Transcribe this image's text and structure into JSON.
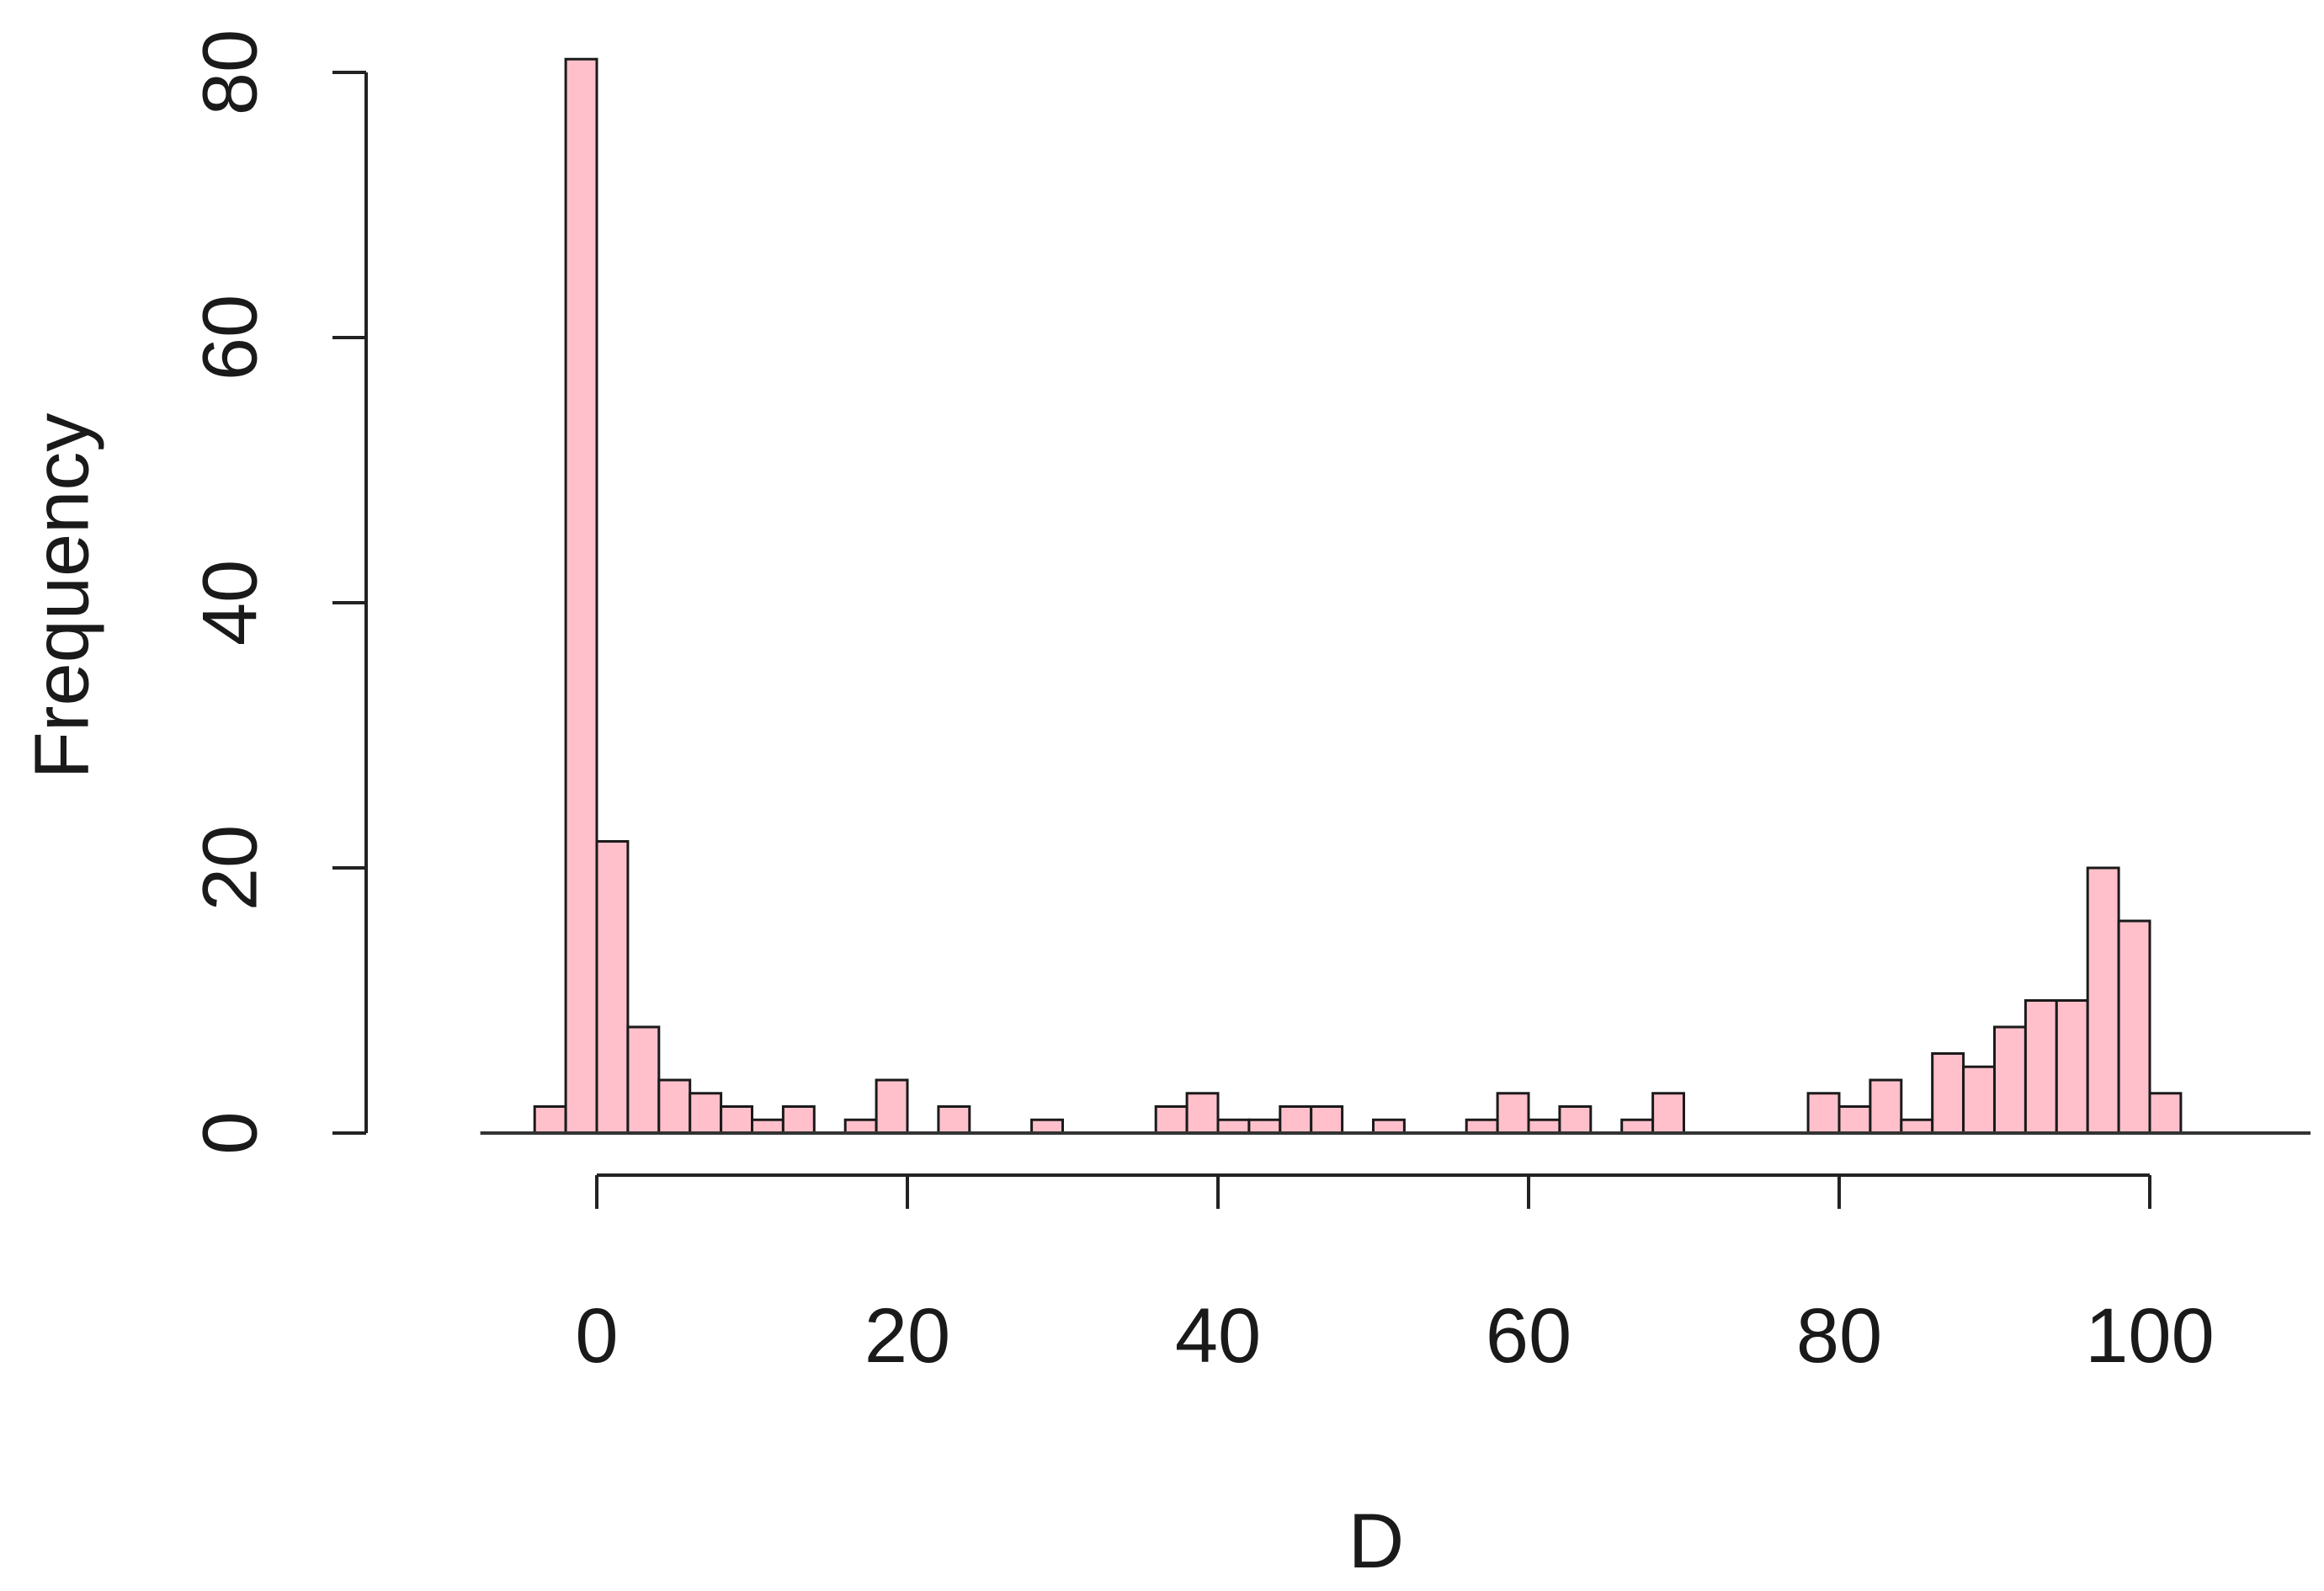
{
  "chart_data": {
    "type": "bar",
    "xlabel": "D",
    "ylabel": "Frequency",
    "bar_color": "#ffc0cb",
    "edge_color": "#1a1a1a",
    "bin_width": 2,
    "xlim": [
      -10,
      110
    ],
    "ylim": [
      0,
      82
    ],
    "x_ticks": [
      0,
      20,
      40,
      60,
      80,
      100
    ],
    "y_ticks": [
      0,
      20,
      40,
      60,
      80
    ],
    "bins": [
      {
        "x": -4,
        "value": 2
      },
      {
        "x": -2,
        "value": 81
      },
      {
        "x": 0,
        "value": 22
      },
      {
        "x": 2,
        "value": 8
      },
      {
        "x": 4,
        "value": 4
      },
      {
        "x": 6,
        "value": 3
      },
      {
        "x": 8,
        "value": 2
      },
      {
        "x": 10,
        "value": 1
      },
      {
        "x": 12,
        "value": 2
      },
      {
        "x": 16,
        "value": 1
      },
      {
        "x": 18,
        "value": 4
      },
      {
        "x": 22,
        "value": 2
      },
      {
        "x": 28,
        "value": 1
      },
      {
        "x": 36,
        "value": 2
      },
      {
        "x": 38,
        "value": 3
      },
      {
        "x": 40,
        "value": 1
      },
      {
        "x": 42,
        "value": 1
      },
      {
        "x": 44,
        "value": 2
      },
      {
        "x": 46,
        "value": 2
      },
      {
        "x": 50,
        "value": 1
      },
      {
        "x": 56,
        "value": 1
      },
      {
        "x": 58,
        "value": 3
      },
      {
        "x": 60,
        "value": 1
      },
      {
        "x": 62,
        "value": 2
      },
      {
        "x": 66,
        "value": 1
      },
      {
        "x": 68,
        "value": 3
      },
      {
        "x": 78,
        "value": 3
      },
      {
        "x": 80,
        "value": 2
      },
      {
        "x": 82,
        "value": 4
      },
      {
        "x": 84,
        "value": 1
      },
      {
        "x": 86,
        "value": 6
      },
      {
        "x": 88,
        "value": 5
      },
      {
        "x": 90,
        "value": 8
      },
      {
        "x": 92,
        "value": 10
      },
      {
        "x": 94,
        "value": 10
      },
      {
        "x": 96,
        "value": 20
      },
      {
        "x": 98,
        "value": 16
      },
      {
        "x": 100,
        "value": 3
      }
    ]
  }
}
